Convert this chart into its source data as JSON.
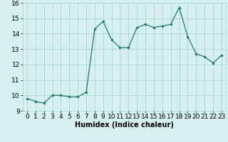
{
  "x": [
    0,
    1,
    2,
    3,
    4,
    5,
    6,
    7,
    8,
    9,
    10,
    11,
    12,
    13,
    14,
    15,
    16,
    17,
    18,
    19,
    20,
    21,
    22,
    23
  ],
  "y": [
    9.8,
    9.6,
    9.5,
    10.0,
    10.0,
    9.9,
    9.9,
    10.2,
    14.3,
    14.8,
    13.6,
    13.1,
    13.1,
    14.4,
    14.6,
    14.4,
    14.5,
    14.6,
    15.7,
    13.8,
    12.7,
    12.5,
    12.1,
    12.6
  ],
  "line_color": "#1a7a6e",
  "marker_color": "#1a7a6e",
  "bg_color": "#d6f0f0",
  "grid_color": "#a8d0d0",
  "xlabel": "Humidex (Indice chaleur)",
  "xlim": [
    -0.5,
    23.5
  ],
  "ylim": [
    9,
    16
  ],
  "yticks": [
    9,
    10,
    11,
    12,
    13,
    14,
    15,
    16
  ],
  "xticks": [
    0,
    1,
    2,
    3,
    4,
    5,
    6,
    7,
    8,
    9,
    10,
    11,
    12,
    13,
    14,
    15,
    16,
    17,
    18,
    19,
    20,
    21,
    22,
    23
  ],
  "label_fontsize": 7,
  "tick_fontsize": 6.5
}
